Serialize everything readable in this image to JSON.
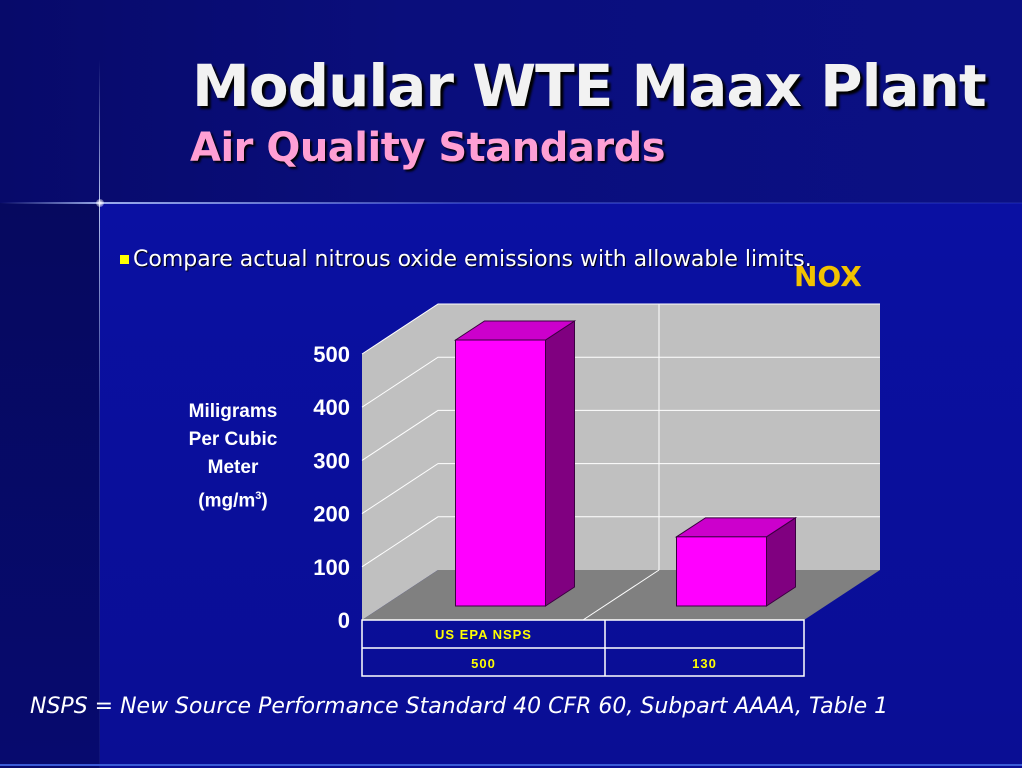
{
  "slide": {
    "title": "Modular WTE Maax Plant",
    "subtitle": "Air Quality Standards",
    "bullet": "Compare actual nitrous oxide emissions with allowable limits.",
    "footnote": "NSPS = New Source Performance Standard 40 CFR 60, Subpart AAAA, Table 1"
  },
  "colors": {
    "bar_front": "#ff00ff",
    "bar_top": "#cc00cc",
    "bar_side": "#800080",
    "wall": "#c0c0c0",
    "floor": "#808080",
    "title_text": "#f2f2f2",
    "subtitle_text": "#ff9fd4",
    "label_yellow": "#ffff00"
  },
  "chart_data": {
    "type": "bar",
    "title": "NOX",
    "ylabel_lines": [
      "Miligrams",
      "Per Cubic",
      "Meter",
      "(mg/m",
      "3",
      ")"
    ],
    "ylim": [
      0,
      500
    ],
    "yticks": [
      0,
      100,
      200,
      300,
      400,
      500
    ],
    "categories": [
      "US EPA NSPS",
      ""
    ],
    "values": [
      500,
      130
    ],
    "value_labels": [
      "500",
      "130"
    ],
    "grid": true,
    "style": "3d"
  }
}
